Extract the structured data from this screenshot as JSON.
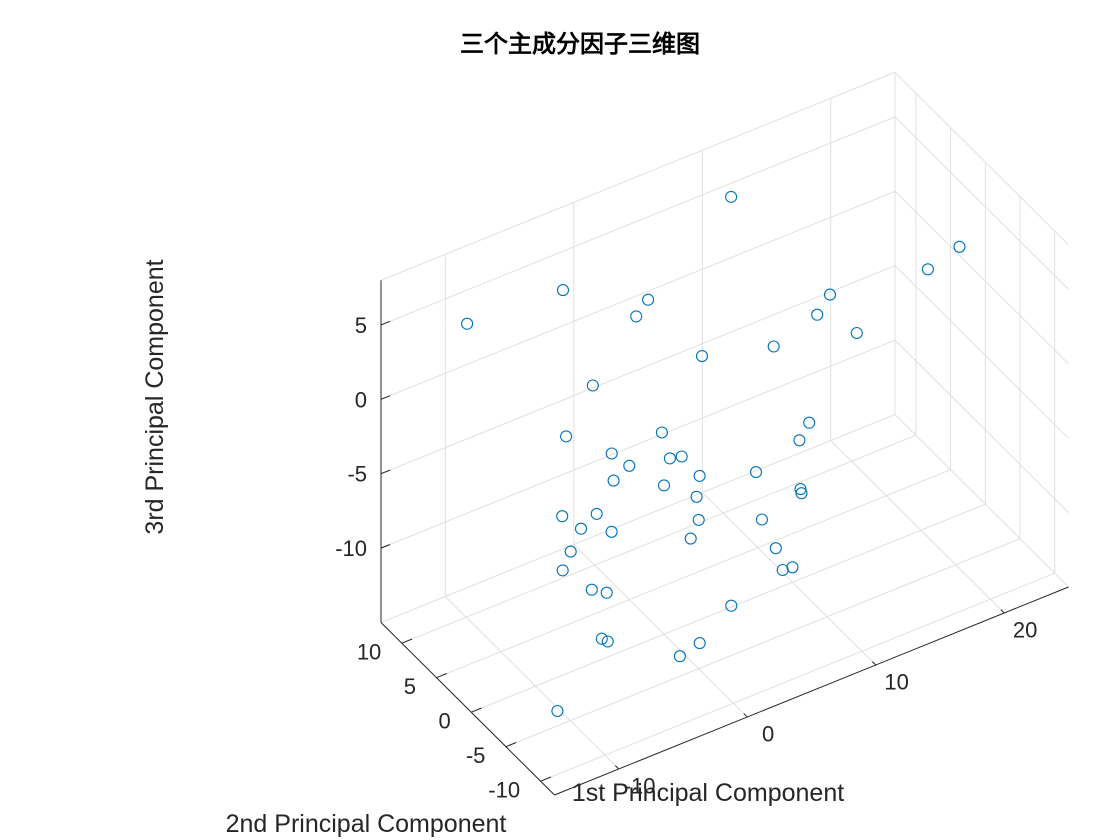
{
  "chart_data": {
    "type": "scatter",
    "title": "三个主成分因子三维图",
    "xlabel": "1st Principal Component",
    "ylabel": "2nd Principal Component",
    "zlabel": "3rd Principal Component",
    "xlim": [
      -15,
      25
    ],
    "ylim": [
      -12,
      13
    ],
    "zlim": [
      -15,
      8
    ],
    "xticks": [
      -10,
      0,
      10,
      20
    ],
    "yticks": [
      -10,
      -5,
      0,
      5,
      10
    ],
    "zticks": [
      -10,
      -5,
      0,
      5
    ],
    "xtick_labels": [
      "-10",
      "0",
      "10",
      "20"
    ],
    "ytick_labels": [
      "-10",
      "-5",
      "0",
      "5",
      "10"
    ],
    "ztick_labels": [
      "-10",
      "-5",
      "0",
      "5"
    ],
    "grid": true,
    "box": false,
    "marker": "circle-open",
    "color": "#0072BD",
    "points": [
      [
        -11,
        8,
        6
      ],
      [
        -3,
        9,
        5
      ],
      [
        2,
        6,
        4
      ],
      [
        9,
        7,
        8
      ],
      [
        -5,
        1,
        3
      ],
      [
        0,
        4,
        4.5
      ],
      [
        3.5,
        1,
        2
      ],
      [
        8,
        -1,
        2
      ],
      [
        -6,
        3,
        -1
      ],
      [
        -6.5,
        -4.5,
        1.5
      ],
      [
        -10.5,
        -6,
        -3
      ],
      [
        -9,
        -2,
        -3
      ],
      [
        -5,
        -2,
        -2
      ],
      [
        -9.5,
        -3,
        -6
      ],
      [
        2,
        -1,
        -6
      ],
      [
        3,
        3,
        -5.5
      ],
      [
        0,
        5,
        -6
      ],
      [
        2.5,
        -0.5,
        -5
      ],
      [
        0,
        0,
        -5
      ],
      [
        1,
        1,
        -4
      ],
      [
        2,
        4,
        -4
      ],
      [
        -2,
        6,
        -9
      ],
      [
        -3,
        2,
        -8
      ],
      [
        -7,
        -1,
        -5
      ],
      [
        0,
        -5,
        -5
      ],
      [
        -5,
        -1,
        -10
      ],
      [
        -4,
        3,
        -12
      ],
      [
        -7,
        -4,
        -11
      ],
      [
        -11,
        -5,
        -14
      ],
      [
        8,
        -5,
        -6
      ],
      [
        10,
        -1,
        -5
      ],
      [
        1,
        -2,
        -8
      ],
      [
        5,
        -4,
        -4
      ],
      [
        6,
        -3,
        -8
      ],
      [
        6,
        -5,
        -9
      ],
      [
        6,
        -6,
        -10
      ],
      [
        2,
        -6,
        -11
      ],
      [
        -6,
        -3,
        -12
      ],
      [
        -2,
        -6,
        -13
      ],
      [
        -1,
        -7,
        -12
      ],
      [
        9,
        -3,
        -7
      ],
      [
        14,
        5,
        -8
      ],
      [
        10,
        0,
        -14
      ],
      [
        13,
        2,
        1
      ],
      [
        14,
        2,
        2
      ],
      [
        15,
        0,
        0
      ],
      [
        20,
        -1,
        3
      ],
      [
        23,
        0,
        3
      ]
    ]
  }
}
